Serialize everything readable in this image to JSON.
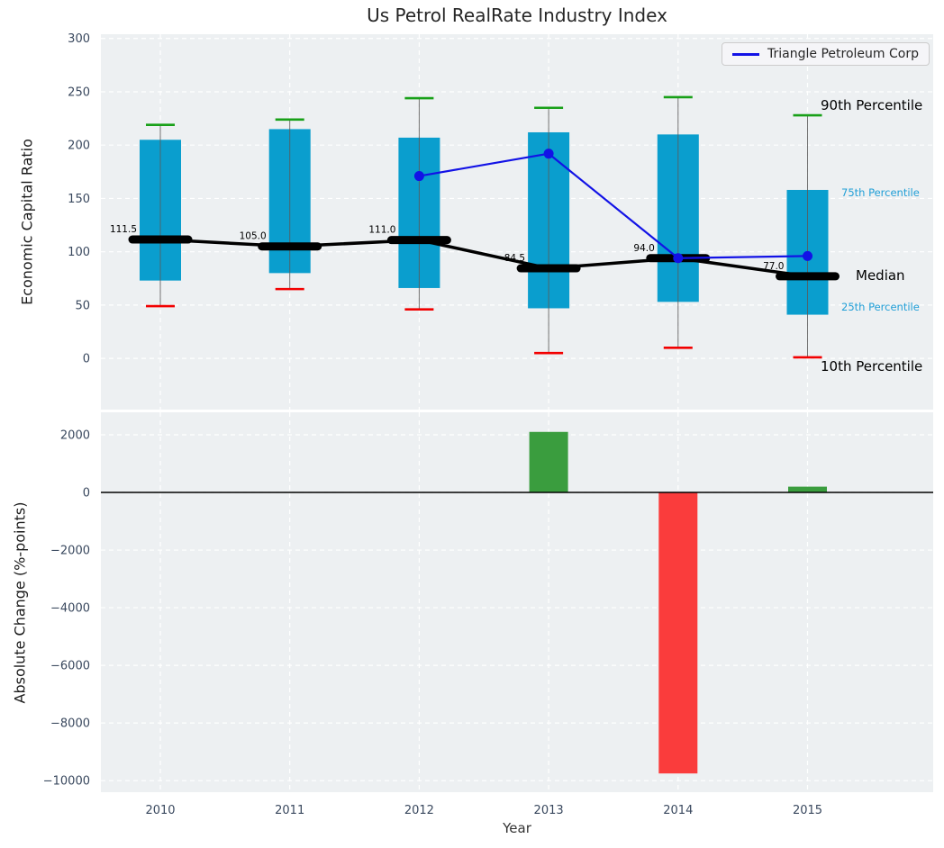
{
  "title": "Us Petrol RealRate Industry Index",
  "legend": {
    "label": "Triangle Petroleum Corp",
    "color": "#1212e6"
  },
  "annotations": {
    "p90": "90th Percentile",
    "p75": "75th Percentile",
    "median": "Median",
    "p25": "25th Percentile",
    "p10": "10th Percentile"
  },
  "colors": {
    "axes_bg": "#edf0f2",
    "grid": "#ffffff",
    "box_fill": "#0a9ece",
    "whisker": "#5a5a5a",
    "cap_high": "#18a018",
    "cap_low": "#f20000",
    "median": "#000000",
    "company_line": "#1212e6",
    "bar_positive": "#3a9d3e",
    "bar_negative": "#fa3c3c",
    "tick_label": "#39485e",
    "zero_line": "#000000",
    "percentile_small_label": "#219fd7"
  },
  "chart_data": [
    {
      "type": "box-percentiles",
      "title": "Us Petrol RealRate Industry Index",
      "ylabel": "Economic Capital Ratio",
      "categories": [
        "2010",
        "2011",
        "2012",
        "2013",
        "2014",
        "2015"
      ],
      "yticks": [
        0,
        50,
        100,
        150,
        200,
        250,
        300
      ],
      "ylim": [
        -48,
        304
      ],
      "grid": true,
      "legend_position": "upper right",
      "series": [
        {
          "name": "10th Percentile",
          "values": [
            49,
            65,
            46,
            5,
            10,
            1
          ]
        },
        {
          "name": "25th Percentile",
          "values": [
            73,
            80,
            66,
            47,
            53,
            41
          ]
        },
        {
          "name": "Median",
          "values": [
            111.5,
            105.0,
            111.0,
            84.5,
            94.0,
            77.0
          ]
        },
        {
          "name": "75th Percentile",
          "values": [
            205,
            215,
            207,
            212,
            210,
            158
          ]
        },
        {
          "name": "90th Percentile",
          "values": [
            219,
            224,
            244,
            235,
            245,
            228
          ]
        },
        {
          "name": "Triangle Petroleum Corp",
          "values": [
            null,
            null,
            171,
            192,
            94,
            96
          ]
        }
      ]
    },
    {
      "type": "bar",
      "ylabel": "Absolute Change (%-points)",
      "xlabel": "Year",
      "categories": [
        "2010",
        "2011",
        "2012",
        "2013",
        "2014",
        "2015"
      ],
      "values": [
        null,
        null,
        null,
        2100,
        -9750,
        200
      ],
      "yticks": [
        2000,
        0,
        -2000,
        -4000,
        -6000,
        -8000,
        -10000
      ],
      "ytick_labels": [
        "2000",
        "0",
        "−2000",
        "−4000",
        "−6000",
        "−8000",
        "−10000"
      ],
      "ylim": [
        -10400,
        2780
      ],
      "grid": true
    }
  ]
}
